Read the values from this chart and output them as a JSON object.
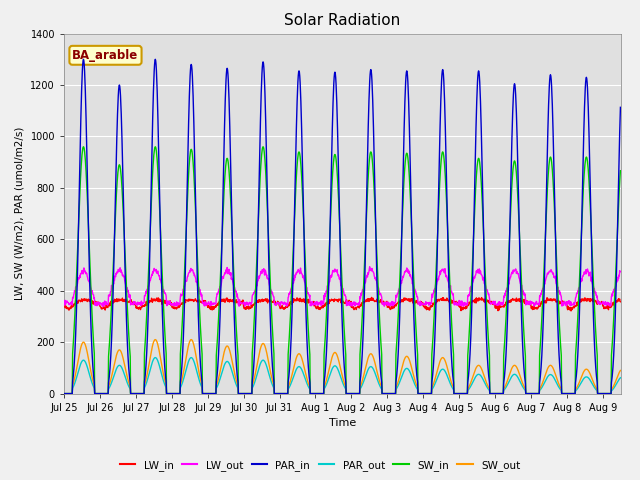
{
  "title": "Solar Radiation",
  "xlabel": "Time",
  "ylabel": "LW, SW (W/m2), PAR (umol/m2/s)",
  "ylim": [
    0,
    1400
  ],
  "yticks": [
    0,
    200,
    400,
    600,
    800,
    1000,
    1200,
    1400
  ],
  "annotation": "BA_arable",
  "bg_color": "#e0e0e0",
  "series": {
    "LW_in": {
      "color": "#ff0000",
      "lw": 1.0
    },
    "LW_out": {
      "color": "#ff00ff",
      "lw": 1.0
    },
    "PAR_in": {
      "color": "#0000cc",
      "lw": 1.0
    },
    "PAR_out": {
      "color": "#00cccc",
      "lw": 1.0
    },
    "SW_in": {
      "color": "#00cc00",
      "lw": 1.0
    },
    "SW_out": {
      "color": "#ff9900",
      "lw": 1.0
    }
  },
  "tick_labels": [
    "Jul 25",
    "Jul 26",
    "Jul 27",
    "Jul 28",
    "Jul 29",
    "Jul 30",
    "Jul 31",
    "Aug 1",
    "Aug 2",
    "Aug 3",
    "Aug 4",
    "Aug 5",
    "Aug 6",
    "Aug 7",
    "Aug 8",
    "Aug 9"
  ],
  "num_days": 15.5,
  "dt_hours": 0.25,
  "par_peaks": [
    1300,
    1200,
    1300,
    1280,
    1265,
    1290,
    1255,
    1250,
    1260,
    1255,
    1260,
    1255,
    1205,
    1240,
    1230,
    1230
  ],
  "sw_peaks": [
    960,
    890,
    960,
    950,
    915,
    960,
    940,
    930,
    940,
    935,
    940,
    915,
    905,
    920,
    920,
    915
  ],
  "sw_out_peaks": [
    200,
    170,
    210,
    210,
    185,
    195,
    155,
    160,
    155,
    145,
    140,
    110,
    110,
    110,
    95,
    95
  ],
  "par_out_peaks": [
    130,
    110,
    140,
    140,
    125,
    130,
    105,
    108,
    105,
    98,
    95,
    75,
    75,
    74,
    65,
    65
  ]
}
